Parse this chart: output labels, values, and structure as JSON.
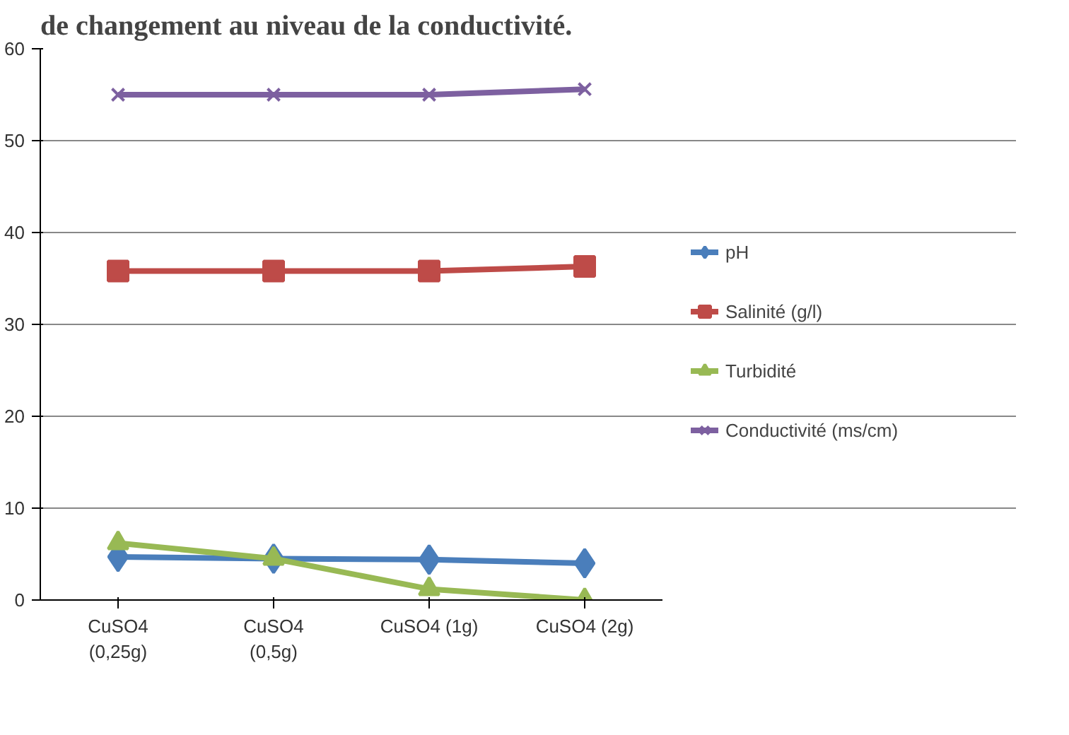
{
  "chart_data": {
    "type": "line",
    "title": "de changement au niveau de la conductivité.",
    "categories": [
      "CuSO4\n(0,25g)",
      "CuSO4\n(0,5g)",
      "CuSO4 (1g)",
      "CuSO4 (2g)"
    ],
    "series": [
      {
        "name": "pH",
        "color": "#4a7ebb",
        "marker": "diamond",
        "values": [
          4.7,
          4.5,
          4.4,
          4.0
        ]
      },
      {
        "name": "Salinité (g/l)",
        "color": "#be4b48",
        "marker": "square",
        "values": [
          35.8,
          35.8,
          35.8,
          36.3
        ]
      },
      {
        "name": "Turbidité",
        "color": "#98b954",
        "marker": "triangle",
        "values": [
          6.2,
          4.5,
          1.2,
          0
        ]
      },
      {
        "name": "Conductivité (ms/cm)",
        "color": "#7d60a0",
        "marker": "cross",
        "values": [
          55,
          55,
          55,
          55.6
        ]
      }
    ],
    "ylim": [
      0,
      60
    ],
    "yticks": [
      0,
      10,
      20,
      30,
      40,
      50,
      60
    ],
    "grid": "y",
    "legend": "right"
  }
}
